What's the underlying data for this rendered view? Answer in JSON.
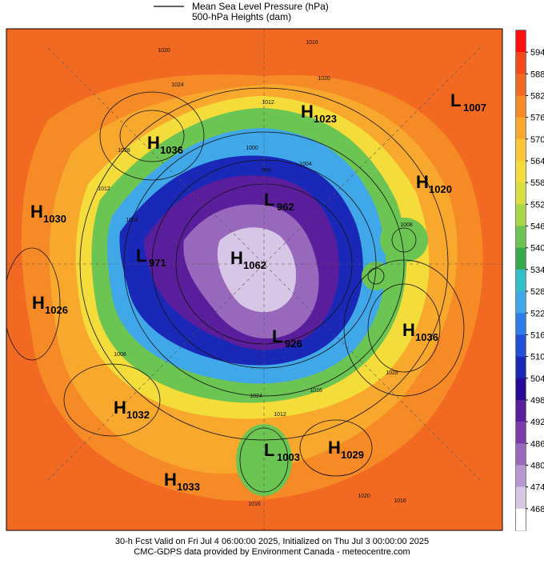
{
  "legend": {
    "lines": [
      "Mean Sea Level Pressure (hPa)",
      "500-hPa Heights (dam)"
    ]
  },
  "colorbar": {
    "ticks": [
      594,
      588,
      582,
      576,
      570,
      564,
      558,
      552,
      546,
      540,
      534,
      528,
      522,
      516,
      510,
      504,
      498,
      492,
      486,
      480,
      474,
      468
    ],
    "colors": [
      "#ff1010",
      "#f4481c",
      "#f26a22",
      "#f58a26",
      "#f8a82c",
      "#fbc534",
      "#f4dc3a",
      "#d8e040",
      "#a8d648",
      "#6cc452",
      "#36a84e",
      "#30c0c8",
      "#40a8e8",
      "#2e7ce8",
      "#2050d8",
      "#1a28b8",
      "#280a98",
      "#5a1e9c",
      "#7a3caa",
      "#9868bc",
      "#b898d0",
      "#d8c6e6",
      "#ffffff"
    ]
  },
  "centers": [
    {
      "letter": "H",
      "value": 1036
    },
    {
      "letter": "H",
      "value": 1023
    },
    {
      "letter": "L",
      "value": 1007
    },
    {
      "letter": "H",
      "value": 1020
    },
    {
      "letter": "L",
      "value": 962
    },
    {
      "letter": "H",
      "value": 1030
    },
    {
      "letter": "L",
      "value": 971
    },
    {
      "letter": "H",
      "value": 1062
    },
    {
      "letter": "H",
      "value": 1026
    },
    {
      "letter": "H",
      "value": 1036
    },
    {
      "letter": "L",
      "value": 926
    },
    {
      "letter": "H",
      "value": 1032
    },
    {
      "letter": "L",
      "value": 1003
    },
    {
      "letter": "H",
      "value": 1029
    },
    {
      "letter": "H",
      "value": 1033
    }
  ],
  "contour_labels": [
    1020,
    1024,
    1028,
    1012,
    1004,
    1016,
    1020,
    1012,
    1000,
    1004,
    996,
    1008,
    1012,
    1028,
    1016,
    1020,
    1016,
    1024,
    1016,
    1008
  ],
  "footer": [
    "30-h Fcst Valid on Fri Jul  4 06:00:00 2025, Initialized on Thu Jul  3 00:00:00 2025",
    "CMC-GDPS data provided by Environment Canada - meteocentre.com"
  ]
}
